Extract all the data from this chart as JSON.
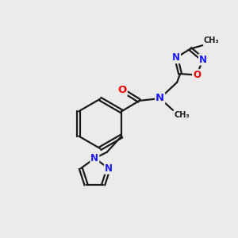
{
  "bg_color": "#ebebeb",
  "bond_color": "#1a1a1a",
  "bond_width": 1.6,
  "atom_colors": {
    "C": "#1a1a1a",
    "N": "#1a1aff",
    "O": "#ee0000"
  },
  "font_size": 8.5
}
